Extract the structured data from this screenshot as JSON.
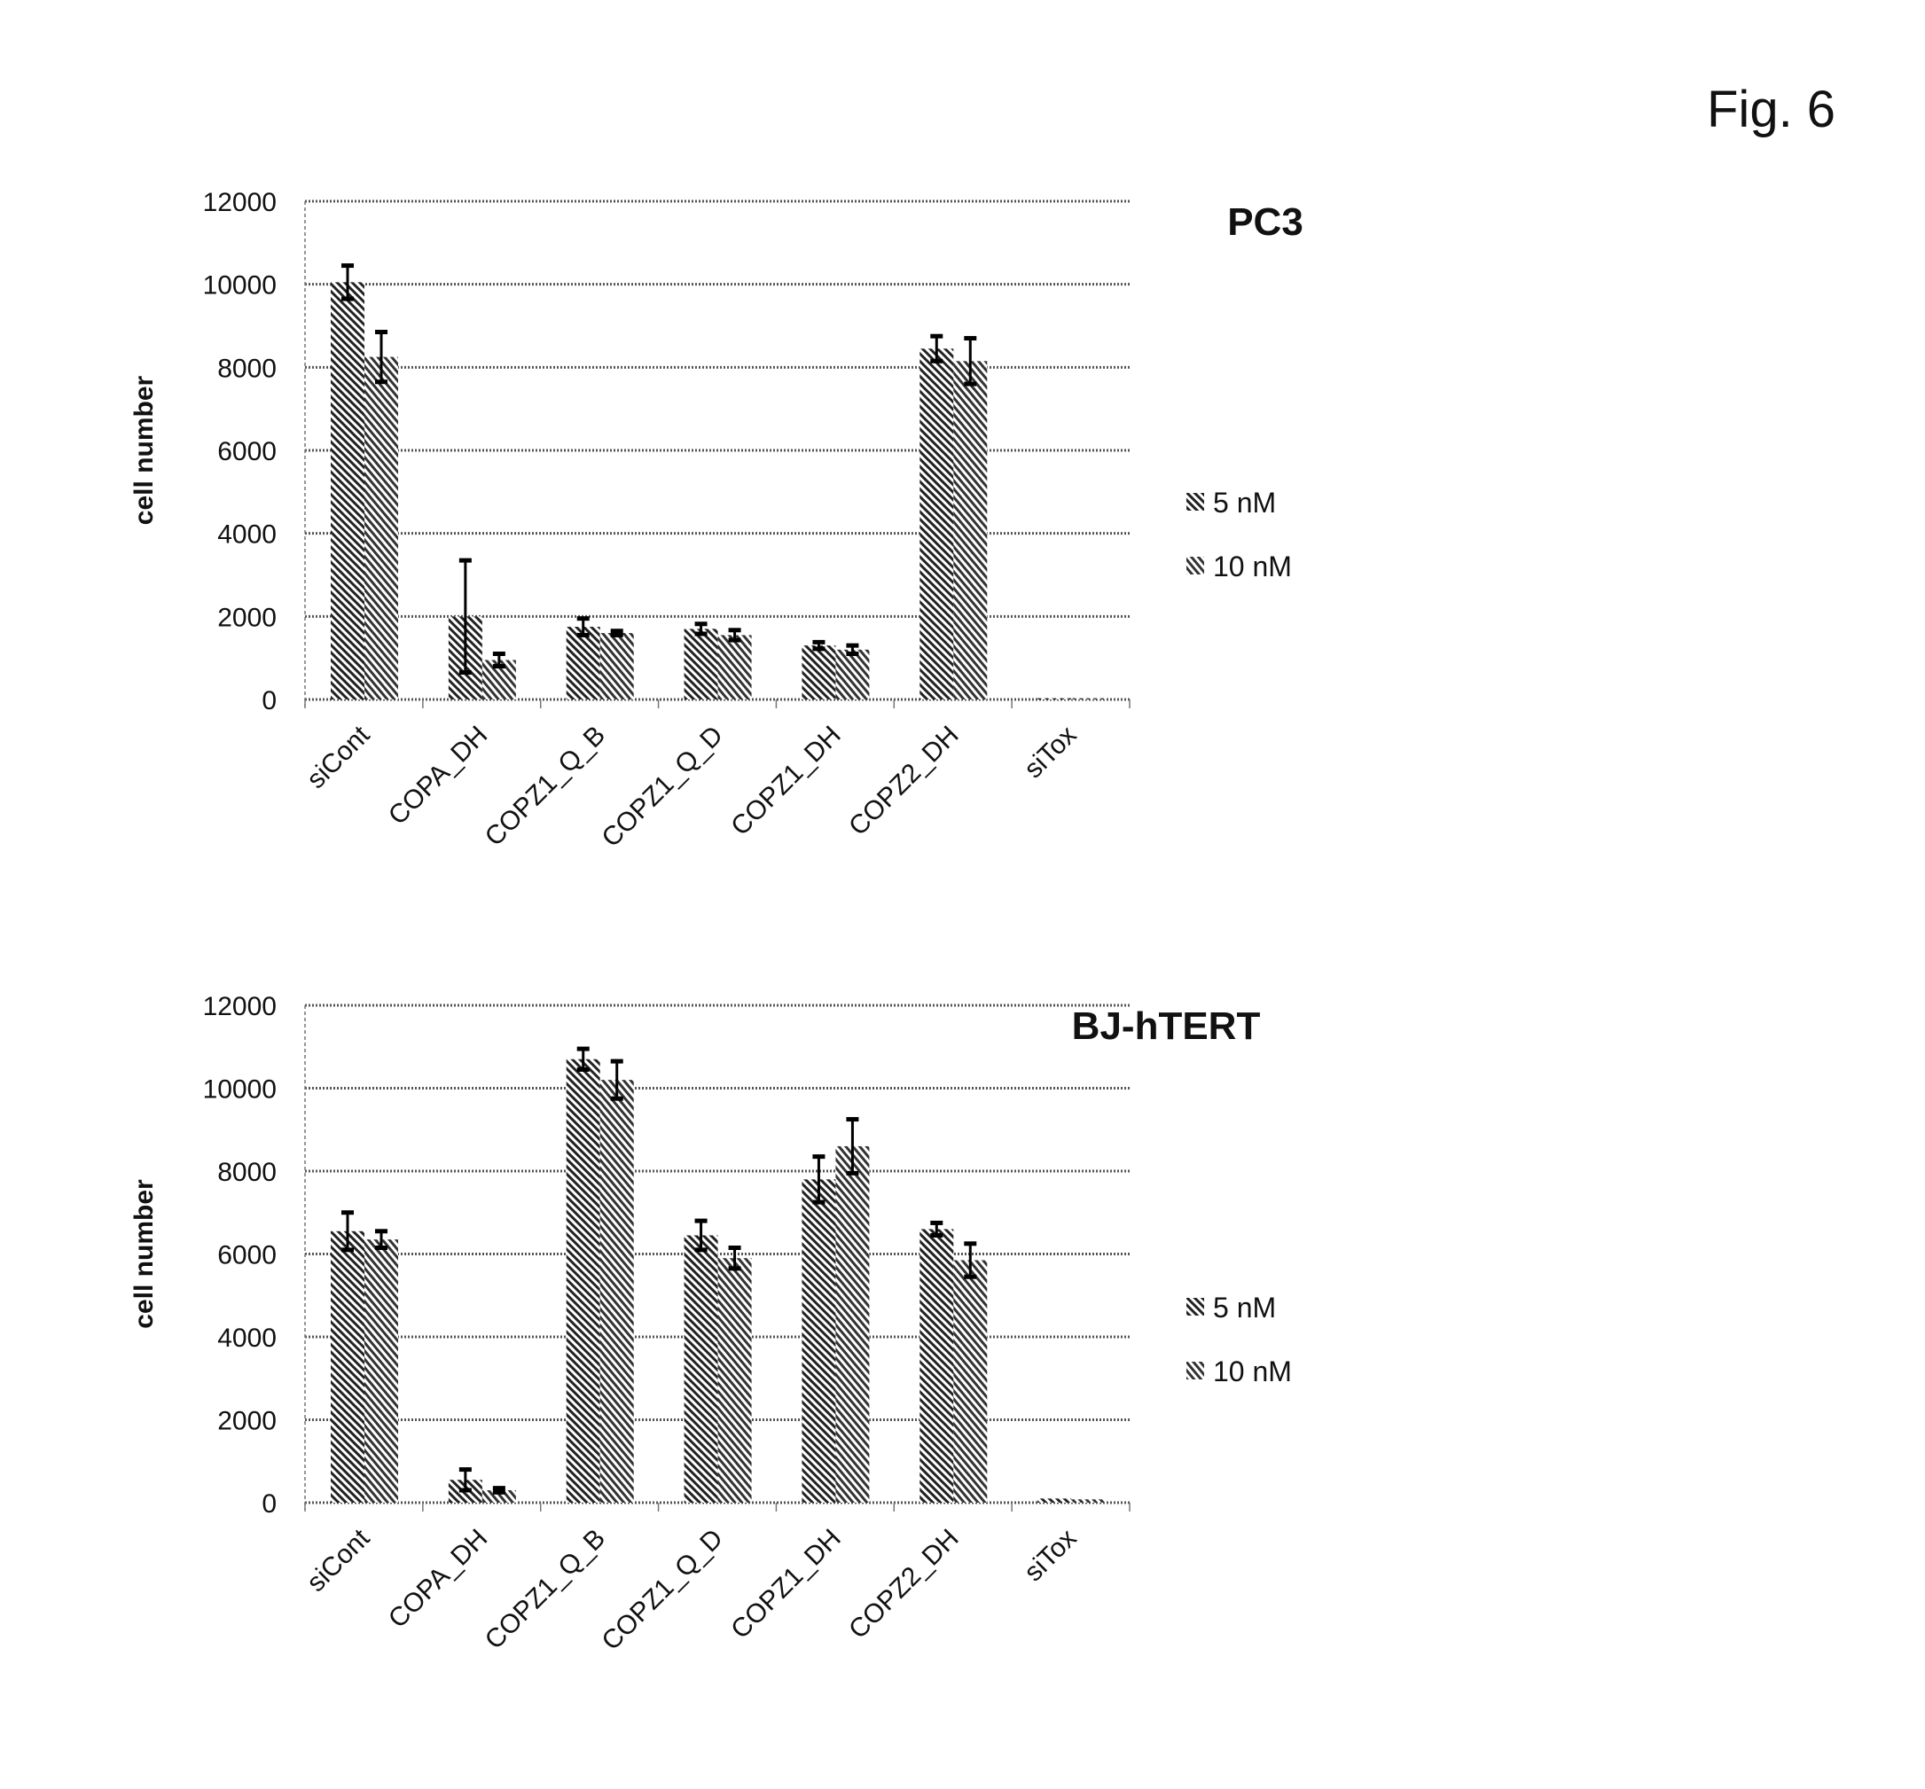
{
  "figure_label": "Fig. 6",
  "chart_data": [
    {
      "type": "bar",
      "title": "PC3",
      "ylabel": "cell number",
      "xlabel": "",
      "ylim": [
        0,
        12000
      ],
      "yticks": [
        "0",
        "2000",
        "4000",
        "6000",
        "8000",
        "10000",
        "12000"
      ],
      "grid": true,
      "legend_position": "right",
      "categories": [
        "siCont",
        "COPA_DH",
        "COPZ1_Q_B",
        "COPZ1_Q_D",
        "COPZ1_DH",
        "COPZ2_DH",
        "siTox"
      ],
      "series": [
        {
          "name": "5 nM",
          "values": [
            10050,
            2000,
            1750,
            1700,
            1300,
            8450,
            30
          ],
          "errors": [
            400,
            1350,
            200,
            120,
            80,
            300,
            0
          ]
        },
        {
          "name": "10 nM",
          "values": [
            8250,
            950,
            1600,
            1550,
            1200,
            8150,
            30
          ],
          "errors": [
            600,
            150,
            50,
            120,
            100,
            550,
            0
          ]
        }
      ]
    },
    {
      "type": "bar",
      "title": "BJ-hTERT",
      "ylabel": "cell number",
      "xlabel": "",
      "ylim": [
        0,
        12000
      ],
      "yticks": [
        "0",
        "2000",
        "4000",
        "6000",
        "8000",
        "10000",
        "12000"
      ],
      "grid": true,
      "legend_position": "right",
      "categories": [
        "siCont",
        "COPA_DH",
        "COPZ1_Q_B",
        "COPZ1_Q_D",
        "COPZ1_DH",
        "COPZ2_DH",
        "siTox"
      ],
      "series": [
        {
          "name": "5 nM",
          "values": [
            6550,
            550,
            10700,
            6450,
            7800,
            6600,
            100
          ],
          "errors": [
            450,
            250,
            250,
            350,
            550,
            150,
            0
          ]
        },
        {
          "name": "10 nM",
          "values": [
            6350,
            300,
            10200,
            5900,
            8600,
            5850,
            80
          ],
          "errors": [
            200,
            50,
            450,
            250,
            650,
            400,
            0
          ]
        }
      ]
    }
  ]
}
